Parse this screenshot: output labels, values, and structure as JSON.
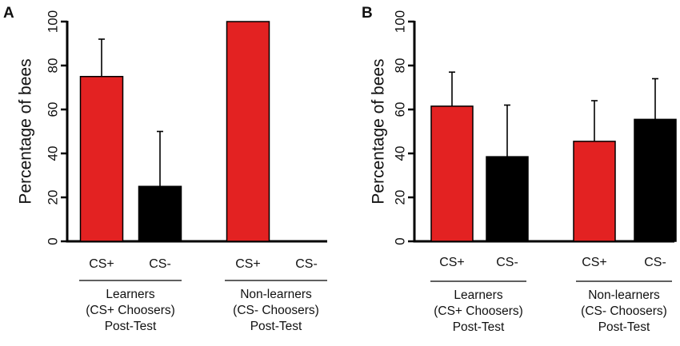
{
  "chart_data": [
    {
      "type": "bar",
      "panel": "A",
      "ylabel": "Percentage of bees",
      "ylim": [
        0,
        100
      ],
      "yticks": [
        "0",
        "20",
        "40",
        "60",
        "80",
        "100"
      ],
      "grid": false,
      "groups": [
        {
          "label_lines": [
            "Learners",
            "(CS+ Choosers)",
            "Post-Test"
          ],
          "bars": [
            {
              "category": "CS+",
              "value": 75,
              "error_upper": 92,
              "color": "#e32222"
            },
            {
              "category": "CS-",
              "value": 25,
              "error_upper": 50,
              "color": "#000000"
            }
          ]
        },
        {
          "label_lines": [
            "Non-learners",
            "(CS- Choosers)",
            "Post-Test"
          ],
          "bars": [
            {
              "category": "CS+",
              "value": 100,
              "error_upper": 100,
              "color": "#e32222"
            },
            {
              "category": "CS-",
              "value": 0,
              "error_upper": 0,
              "color": "#000000"
            }
          ]
        }
      ]
    },
    {
      "type": "bar",
      "panel": "B",
      "ylabel": "Percentage of bees",
      "ylim": [
        0,
        100
      ],
      "yticks": [
        "0",
        "20",
        "40",
        "60",
        "80",
        "100"
      ],
      "grid": false,
      "groups": [
        {
          "label_lines": [
            "Learners",
            "(CS+ Choosers)",
            "Post-Test"
          ],
          "bars": [
            {
              "category": "CS+",
              "value": 61.5,
              "error_upper": 77,
              "color": "#e32222"
            },
            {
              "category": "CS-",
              "value": 38.5,
              "error_upper": 62,
              "color": "#000000"
            }
          ]
        },
        {
          "label_lines": [
            "Non-learners",
            "(CS- Choosers)",
            "Post-Test"
          ],
          "bars": [
            {
              "category": "CS+",
              "value": 45.5,
              "error_upper": 64,
              "color": "#e32222"
            },
            {
              "category": "CS-",
              "value": 55.5,
              "error_upper": 74,
              "color": "#000000"
            }
          ]
        }
      ]
    }
  ]
}
